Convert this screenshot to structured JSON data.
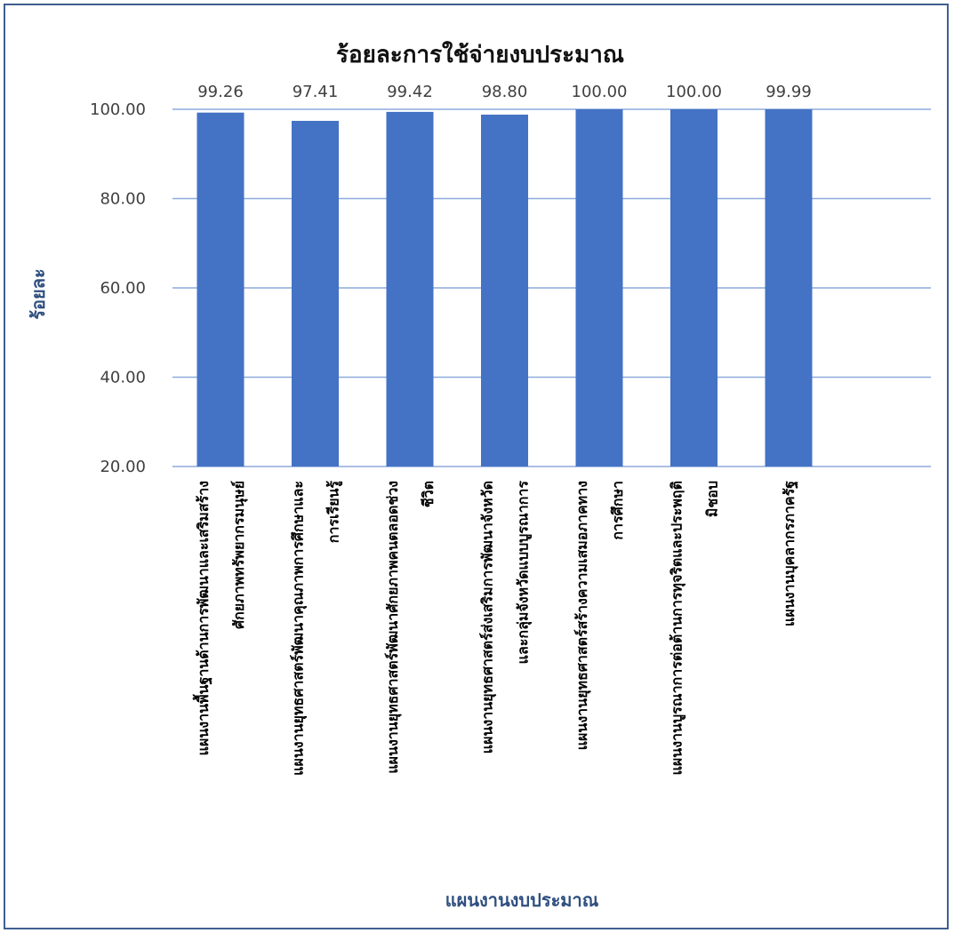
{
  "chart_data": {
    "type": "bar",
    "title": "ร้อยละการใช้จ่ายงบประมาณ",
    "xlabel": "แผนงานงบประมาณ",
    "ylabel": "ร้อยละ",
    "ylim": [
      20,
      100
    ],
    "yticks": [
      "20.00",
      "40.00",
      "60.00",
      "80.00",
      "100.00"
    ],
    "grid": true,
    "bar_color": "#4472c4",
    "categories": [
      [
        "แผนงานพื้นฐานด้านการพัฒนาและเสริมสร้าง",
        "ศักยภาพทรัพยากรมนุษย์"
      ],
      [
        "แผนงานยุทธศาสตร์พัฒนาคุณภาพการศึกษาและ",
        "การเรียนรู้"
      ],
      [
        "แผนงานยุทธศาสตร์พัฒนาศักยภาพคนตลอดช่วง",
        "ชีวิต"
      ],
      [
        "แผนงานยุทธศาสตร์ส่งเสริมการพัฒนาจังหวัด",
        "และกลุ่มจังหวัดแบบบูรณาการ"
      ],
      [
        "แผนงานยุทธศาสตร์สร้างความเสมอภาคทาง",
        "การศึกษา"
      ],
      [
        "แผนงานบูรณาการต่อต้านการทุจริตและประพฤติ",
        "มิชอบ"
      ],
      [
        "แผนงานบุคลากรภาครัฐ"
      ]
    ],
    "values": [
      99.26,
      97.41,
      99.42,
      98.8,
      100.0,
      100.0,
      99.99
    ],
    "data_labels": [
      "99.26",
      "97.41",
      "99.42",
      "98.80",
      "100.00",
      "100.00",
      "99.99"
    ]
  }
}
